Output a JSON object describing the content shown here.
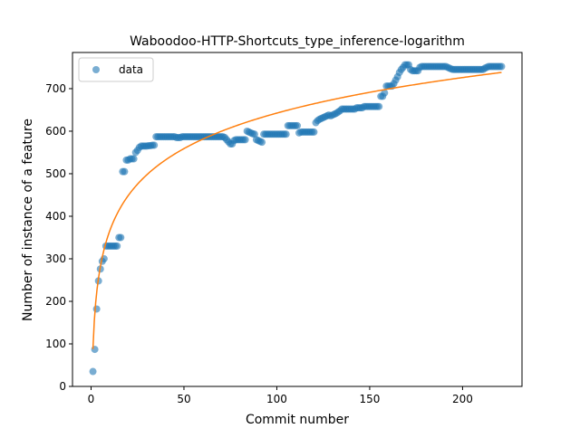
{
  "chart_data": {
    "type": "scatter",
    "title": "Waboodoo-HTTP-Shortcuts_type_inference-logarithm",
    "xlabel": "Commit number",
    "ylabel": "Number of instance of a feature",
    "xlim": [
      -10,
      232
    ],
    "ylim": [
      0,
      785
    ],
    "xticks": [
      0,
      50,
      100,
      150,
      200
    ],
    "yticks": [
      0,
      100,
      200,
      300,
      400,
      500,
      600,
      700
    ],
    "grid": false,
    "legend": {
      "position": "top-left",
      "entries": [
        "data"
      ]
    },
    "colors": {
      "data": "#1f77b4",
      "fit": "#ff7f0e"
    },
    "series": [
      {
        "name": "data",
        "kind": "scatter",
        "points": [
          [
            1,
            35
          ],
          [
            2,
            87
          ],
          [
            3,
            182
          ],
          [
            4,
            248
          ],
          [
            5,
            276
          ],
          [
            6,
            294
          ],
          [
            7,
            300
          ],
          [
            8,
            330
          ],
          [
            9,
            330
          ],
          [
            10,
            330
          ],
          [
            11,
            330
          ],
          [
            12,
            330
          ],
          [
            13,
            330
          ],
          [
            14,
            330
          ],
          [
            15,
            350
          ],
          [
            16,
            350
          ],
          [
            17,
            505
          ],
          [
            18,
            505
          ],
          [
            19,
            532
          ],
          [
            20,
            532
          ],
          [
            21,
            535
          ],
          [
            22,
            535
          ],
          [
            23,
            535
          ],
          [
            24,
            550
          ],
          [
            25,
            555
          ],
          [
            26,
            562
          ],
          [
            27,
            565
          ],
          [
            28,
            565
          ],
          [
            29,
            565
          ],
          [
            30,
            565
          ],
          [
            31,
            566
          ],
          [
            32,
            566
          ],
          [
            33,
            567
          ],
          [
            34,
            567
          ],
          [
            35,
            587
          ],
          [
            36,
            587
          ],
          [
            37,
            587
          ],
          [
            38,
            587
          ],
          [
            39,
            587
          ],
          [
            40,
            587
          ],
          [
            41,
            587
          ],
          [
            42,
            587
          ],
          [
            43,
            587
          ],
          [
            44,
            587
          ],
          [
            45,
            587
          ],
          [
            46,
            585
          ],
          [
            47,
            585
          ],
          [
            48,
            585
          ],
          [
            49,
            587
          ],
          [
            50,
            587
          ],
          [
            51,
            587
          ],
          [
            52,
            587
          ],
          [
            53,
            587
          ],
          [
            54,
            587
          ],
          [
            55,
            587
          ],
          [
            56,
            587
          ],
          [
            57,
            587
          ],
          [
            58,
            587
          ],
          [
            59,
            587
          ],
          [
            60,
            587
          ],
          [
            61,
            587
          ],
          [
            62,
            587
          ],
          [
            63,
            587
          ],
          [
            64,
            587
          ],
          [
            65,
            587
          ],
          [
            66,
            587
          ],
          [
            67,
            587
          ],
          [
            68,
            587
          ],
          [
            69,
            587
          ],
          [
            70,
            587
          ],
          [
            71,
            587
          ],
          [
            72,
            585
          ],
          [
            73,
            580
          ],
          [
            74,
            575
          ],
          [
            75,
            570
          ],
          [
            76,
            570
          ],
          [
            77,
            578
          ],
          [
            78,
            580
          ],
          [
            79,
            580
          ],
          [
            80,
            580
          ],
          [
            81,
            580
          ],
          [
            82,
            580
          ],
          [
            83,
            580
          ],
          [
            84,
            600
          ],
          [
            85,
            598
          ],
          [
            86,
            596
          ],
          [
            87,
            594
          ],
          [
            88,
            593
          ],
          [
            89,
            580
          ],
          [
            90,
            578
          ],
          [
            91,
            576
          ],
          [
            92,
            574
          ],
          [
            93,
            593
          ],
          [
            94,
            593
          ],
          [
            95,
            593
          ],
          [
            96,
            593
          ],
          [
            97,
            593
          ],
          [
            98,
            593
          ],
          [
            99,
            593
          ],
          [
            100,
            593
          ],
          [
            101,
            593
          ],
          [
            102,
            593
          ],
          [
            103,
            593
          ],
          [
            104,
            593
          ],
          [
            105,
            593
          ],
          [
            106,
            613
          ],
          [
            107,
            613
          ],
          [
            108,
            613
          ],
          [
            109,
            613
          ],
          [
            110,
            613
          ],
          [
            111,
            613
          ],
          [
            112,
            596
          ],
          [
            113,
            598
          ],
          [
            114,
            598
          ],
          [
            115,
            598
          ],
          [
            116,
            598
          ],
          [
            117,
            598
          ],
          [
            118,
            598
          ],
          [
            119,
            598
          ],
          [
            120,
            598
          ],
          [
            121,
            620
          ],
          [
            122,
            625
          ],
          [
            123,
            628
          ],
          [
            124,
            630
          ],
          [
            125,
            632
          ],
          [
            126,
            634
          ],
          [
            127,
            636
          ],
          [
            128,
            638
          ],
          [
            129,
            636
          ],
          [
            130,
            638
          ],
          [
            131,
            640
          ],
          [
            132,
            642
          ],
          [
            133,
            645
          ],
          [
            134,
            648
          ],
          [
            135,
            652
          ],
          [
            136,
            652
          ],
          [
            137,
            652
          ],
          [
            138,
            652
          ],
          [
            139,
            652
          ],
          [
            140,
            652
          ],
          [
            141,
            652
          ],
          [
            142,
            652
          ],
          [
            143,
            655
          ],
          [
            144,
            655
          ],
          [
            145,
            655
          ],
          [
            146,
            655
          ],
          [
            147,
            658
          ],
          [
            148,
            658
          ],
          [
            149,
            658
          ],
          [
            150,
            658
          ],
          [
            151,
            658
          ],
          [
            152,
            658
          ],
          [
            153,
            658
          ],
          [
            154,
            658
          ],
          [
            155,
            658
          ],
          [
            156,
            682
          ],
          [
            157,
            682
          ],
          [
            158,
            690
          ],
          [
            159,
            706
          ],
          [
            160,
            706
          ],
          [
            161,
            706
          ],
          [
            162,
            706
          ],
          [
            163,
            712
          ],
          [
            164,
            720
          ],
          [
            165,
            728
          ],
          [
            166,
            738
          ],
          [
            167,
            745
          ],
          [
            168,
            750
          ],
          [
            169,
            756
          ],
          [
            170,
            756
          ],
          [
            171,
            756
          ],
          [
            172,
            745
          ],
          [
            173,
            742
          ],
          [
            174,
            742
          ],
          [
            175,
            742
          ],
          [
            176,
            742
          ],
          [
            177,
            750
          ],
          [
            178,
            752
          ],
          [
            179,
            752
          ],
          [
            180,
            752
          ],
          [
            181,
            752
          ],
          [
            182,
            752
          ],
          [
            183,
            752
          ],
          [
            184,
            752
          ],
          [
            185,
            752
          ],
          [
            186,
            752
          ],
          [
            187,
            752
          ],
          [
            188,
            752
          ],
          [
            189,
            752
          ],
          [
            190,
            752
          ],
          [
            191,
            752
          ],
          [
            192,
            750
          ],
          [
            193,
            748
          ],
          [
            194,
            746
          ],
          [
            195,
            745
          ],
          [
            196,
            745
          ],
          [
            197,
            745
          ],
          [
            198,
            745
          ],
          [
            199,
            745
          ],
          [
            200,
            745
          ],
          [
            201,
            745
          ],
          [
            202,
            745
          ],
          [
            203,
            745
          ],
          [
            204,
            745
          ],
          [
            205,
            745
          ],
          [
            206,
            745
          ],
          [
            207,
            745
          ],
          [
            208,
            745
          ],
          [
            209,
            745
          ],
          [
            210,
            745
          ],
          [
            211,
            745
          ],
          [
            212,
            748
          ],
          [
            213,
            750
          ],
          [
            214,
            752
          ],
          [
            215,
            752
          ],
          [
            216,
            752
          ],
          [
            217,
            752
          ],
          [
            218,
            752
          ],
          [
            219,
            752
          ],
          [
            220,
            752
          ],
          [
            221,
            752
          ]
        ]
      },
      {
        "name": "",
        "kind": "line",
        "formula": "y = a + b*ln(x)",
        "params": {
          "a": 87.6,
          "b": 120.5
        },
        "x_range": [
          1,
          221
        ]
      }
    ]
  }
}
